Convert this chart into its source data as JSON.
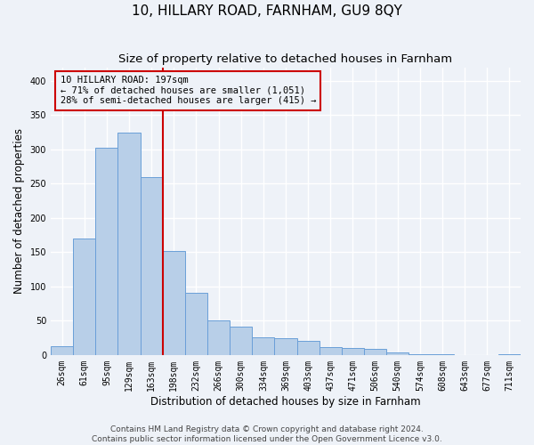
{
  "title": "10, HILLARY ROAD, FARNHAM, GU9 8QY",
  "subtitle": "Size of property relative to detached houses in Farnham",
  "xlabel": "Distribution of detached houses by size in Farnham",
  "ylabel": "Number of detached properties",
  "bar_values": [
    13,
    170,
    302,
    325,
    260,
    152,
    91,
    50,
    42,
    26,
    25,
    21,
    11,
    10,
    9,
    4,
    1,
    1,
    0,
    0,
    1
  ],
  "bin_labels": [
    "26sqm",
    "61sqm",
    "95sqm",
    "129sqm",
    "163sqm",
    "198sqm",
    "232sqm",
    "266sqm",
    "300sqm",
    "334sqm",
    "369sqm",
    "403sqm",
    "437sqm",
    "471sqm",
    "506sqm",
    "540sqm",
    "574sqm",
    "608sqm",
    "643sqm",
    "677sqm",
    "711sqm"
  ],
  "bar_color": "#b8cfe8",
  "bar_edge_color": "#6a9fd8",
  "vline_color": "#cc0000",
  "annotation_text": "10 HILLARY ROAD: 197sqm\n← 71% of detached houses are smaller (1,051)\n28% of semi-detached houses are larger (415) →",
  "annotation_box_edge": "#cc0000",
  "ylim": [
    0,
    420
  ],
  "yticks": [
    0,
    50,
    100,
    150,
    200,
    250,
    300,
    350,
    400
  ],
  "footer_line1": "Contains HM Land Registry data © Crown copyright and database right 2024.",
  "footer_line2": "Contains public sector information licensed under the Open Government Licence v3.0.",
  "background_color": "#eef2f8",
  "grid_color": "#ffffff",
  "title_fontsize": 11,
  "subtitle_fontsize": 9.5,
  "axis_label_fontsize": 8.5,
  "tick_fontsize": 7,
  "footer_fontsize": 6.5,
  "annotation_fontsize": 7.5
}
